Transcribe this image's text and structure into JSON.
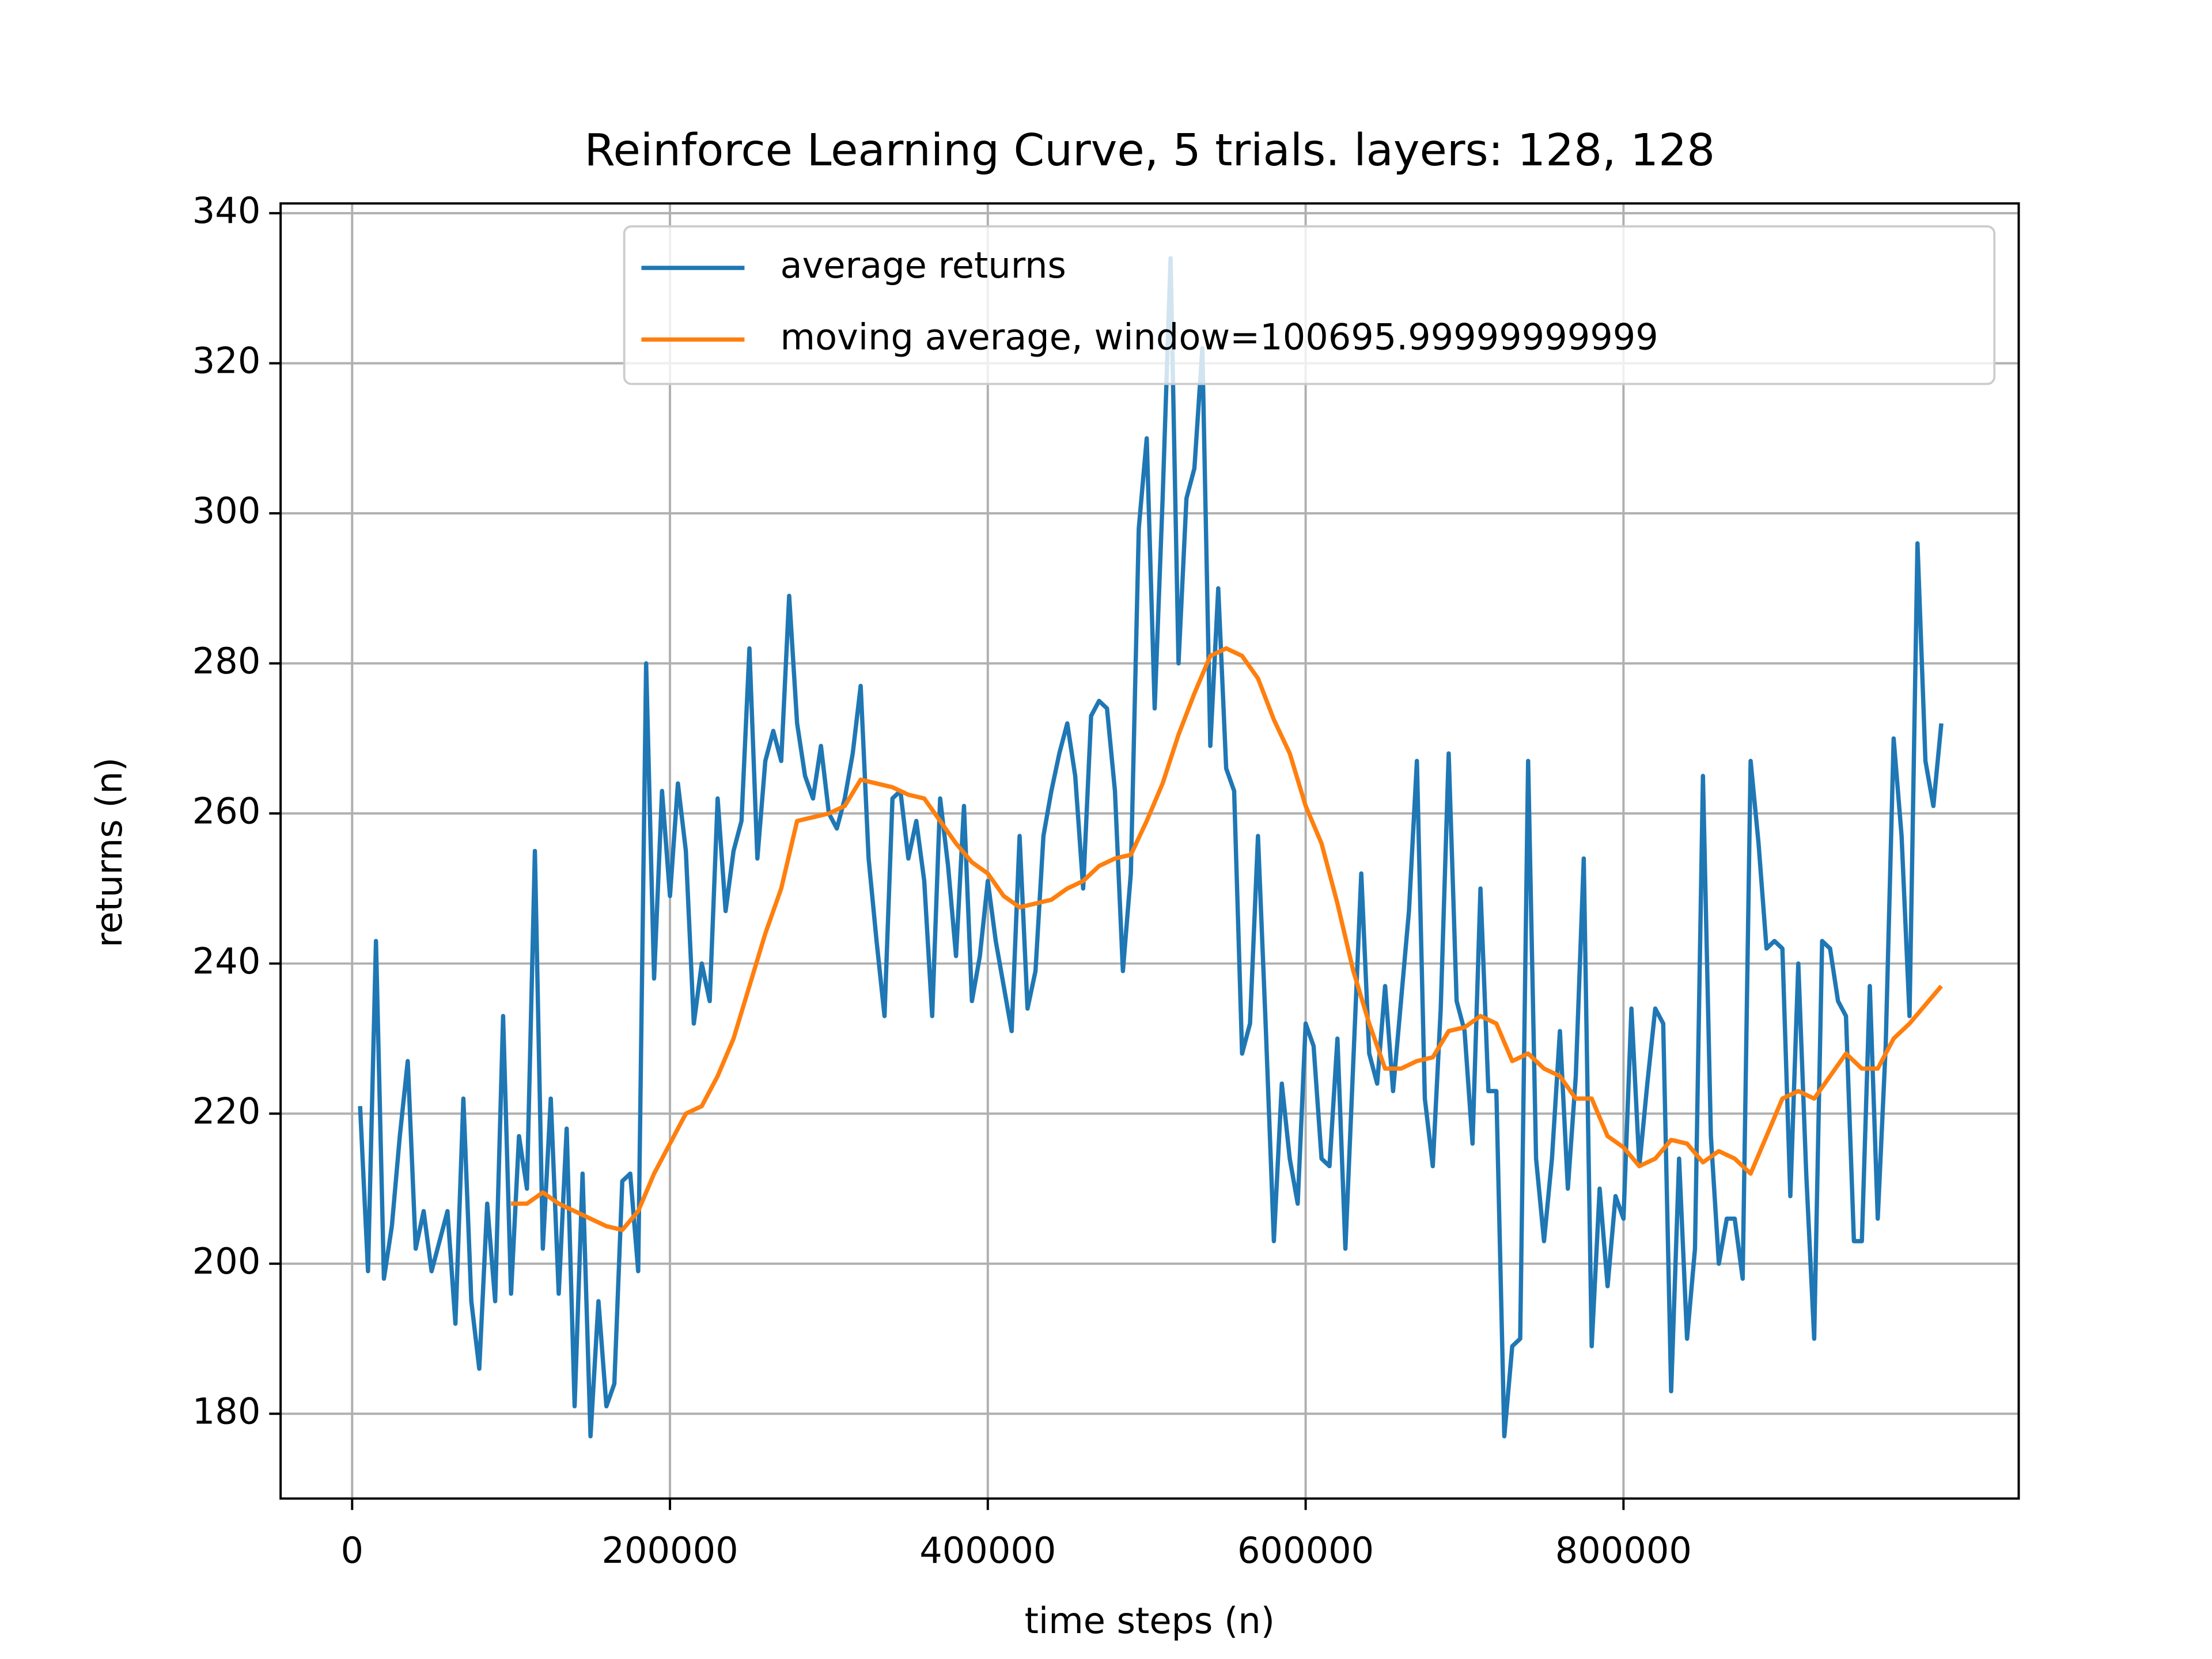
{
  "chart_data": {
    "type": "line",
    "title": "Reinforce Learning Curve, 5 trials. layers: 128, 128",
    "xlabel": "time steps (n)",
    "ylabel": "returns (n)",
    "xlim": [
      -45000,
      1048700
    ],
    "ylim": [
      168.7,
      341.3
    ],
    "xticks": [
      0,
      200000,
      400000,
      600000,
      800000
    ],
    "yticks": [
      180,
      200,
      220,
      240,
      260,
      280,
      300,
      320,
      340
    ],
    "grid": true,
    "series": [
      {
        "name": "average returns",
        "color": "#1f77b4",
        "x": [
          5000,
          10000,
          15000,
          20000,
          25000,
          30000,
          35000,
          40000,
          45000,
          50000,
          55000,
          60000,
          65000,
          70000,
          75000,
          80000,
          85000,
          90000,
          95000,
          100000,
          105000,
          110000,
          115000,
          120000,
          125000,
          130000,
          135000,
          140000,
          145000,
          150000,
          155000,
          160000,
          165000,
          170000,
          175000,
          180000,
          185000,
          190000,
          195000,
          200000,
          205000,
          210000,
          215000,
          220000,
          225000,
          230000,
          235000,
          240000,
          245000,
          250000,
          255000,
          260000,
          265000,
          270000,
          275000,
          280000,
          285000,
          290000,
          295000,
          300000,
          305000,
          310000,
          315000,
          320000,
          325000,
          330000,
          335000,
          340000,
          345000,
          350000,
          355000,
          360000,
          365000,
          370000,
          375000,
          380000,
          385000,
          390000,
          395000,
          400000,
          405000,
          410000,
          415000,
          420000,
          425000,
          430000,
          435000,
          440000,
          445000,
          450000,
          455000,
          460000,
          465000,
          470000,
          475000,
          480000,
          485000,
          490000,
          495000,
          500000,
          505000,
          510000,
          515000,
          520000,
          525000,
          530000,
          535000,
          540000,
          545000,
          550000,
          555000,
          560000,
          565000,
          570000,
          575000,
          580000,
          585000,
          590000,
          595000,
          600000,
          605000,
          610000,
          615000,
          620000,
          625000,
          630000,
          635000,
          640000,
          645000,
          650000,
          655000,
          660000,
          665000,
          670000,
          675000,
          680000,
          685000,
          690000,
          695000,
          700000,
          705000,
          710000,
          715000,
          720000,
          725000,
          730000,
          735000,
          740000,
          745000,
          750000,
          755000,
          760000,
          765000,
          770000,
          775000,
          780000,
          785000,
          790000,
          795000,
          800000,
          805000,
          810000,
          815000,
          820000,
          825000,
          830000,
          835000,
          840000,
          845000,
          850000,
          855000,
          860000,
          865000,
          870000,
          875000,
          880000,
          885000,
          890000,
          895000,
          900000,
          905000,
          910000,
          915000,
          920000,
          925000,
          930000,
          935000,
          940000,
          945000,
          950000,
          955000,
          960000,
          965000,
          970000,
          975000,
          980000,
          985000,
          990000,
          995000,
          1000000
        ],
        "values": [
          221,
          199,
          243,
          198,
          205,
          217,
          227,
          202,
          207,
          199,
          203,
          207,
          192,
          222,
          195,
          186,
          208,
          195,
          233,
          196,
          217,
          210,
          255,
          202,
          222,
          196,
          218,
          181,
          212,
          177,
          195,
          181,
          184,
          211,
          212,
          199,
          280,
          238,
          263,
          249,
          264,
          255,
          232,
          240,
          235,
          262,
          247,
          255,
          259,
          282,
          254,
          267,
          271,
          267,
          289,
          272,
          265,
          262,
          269,
          260,
          258,
          262,
          268,
          277,
          254,
          243,
          233,
          262,
          263,
          254,
          259,
          251,
          233,
          262,
          253,
          241,
          261,
          235,
          241,
          251,
          243,
          237,
          231,
          257,
          234,
          239,
          257,
          263,
          268,
          272,
          265,
          250,
          273,
          275,
          274,
          263,
          239,
          252,
          298,
          310,
          274,
          302,
          334,
          280,
          302,
          306,
          322,
          269,
          290,
          266,
          263,
          228,
          232,
          257,
          231,
          203,
          224,
          214,
          208,
          232,
          229,
          214,
          213,
          230,
          202,
          227,
          252,
          228,
          224,
          237,
          223,
          235,
          247,
          267,
          222,
          213,
          234,
          268,
          235,
          231,
          216,
          250,
          223,
          223,
          177,
          189,
          190,
          267,
          214,
          203,
          214,
          231,
          210,
          225,
          254,
          189,
          210,
          197,
          209,
          206,
          234,
          213,
          224,
          234,
          232,
          183,
          214,
          190,
          202,
          265,
          217,
          200,
          206,
          206,
          198,
          267,
          256,
          242,
          243,
          242,
          209,
          240,
          212,
          190,
          243,
          242,
          235,
          233,
          203,
          203,
          237,
          206,
          229,
          270,
          257,
          233,
          296,
          267,
          261,
          272
        ]
      },
      {
        "name": "moving average, window=100695.99999999999",
        "color": "#ff7f0e",
        "x": [
          100000,
          110000,
          120000,
          130000,
          140000,
          150000,
          160000,
          170000,
          180000,
          190000,
          200000,
          210000,
          220000,
          230000,
          240000,
          250000,
          260000,
          270000,
          280000,
          290000,
          300000,
          310000,
          320000,
          330000,
          340000,
          350000,
          360000,
          370000,
          380000,
          390000,
          400000,
          410000,
          420000,
          430000,
          440000,
          450000,
          460000,
          470000,
          480000,
          490000,
          500000,
          510000,
          520000,
          530000,
          540000,
          550000,
          560000,
          570000,
          580000,
          590000,
          600000,
          610000,
          620000,
          630000,
          640000,
          650000,
          660000,
          670000,
          680000,
          690000,
          700000,
          710000,
          720000,
          730000,
          740000,
          750000,
          760000,
          770000,
          780000,
          790000,
          800000,
          810000,
          820000,
          830000,
          840000,
          850000,
          860000,
          870000,
          880000,
          890000,
          900000,
          910000,
          920000,
          930000,
          940000,
          950000,
          960000,
          970000,
          980000,
          990000,
          1000000
        ],
        "values": [
          208,
          208,
          209.5,
          208,
          207,
          206,
          205,
          204.5,
          207,
          212,
          216,
          220,
          221,
          225,
          230,
          237,
          244,
          250,
          259,
          259.5,
          260,
          261,
          264.5,
          264,
          263.5,
          262.5,
          262,
          259,
          256,
          253.5,
          252,
          249,
          247.5,
          248,
          248.5,
          250,
          251,
          253,
          254,
          254.5,
          259,
          264,
          270.5,
          276,
          281,
          282,
          281,
          278,
          272.5,
          268,
          261,
          256,
          248,
          239,
          232,
          226,
          226,
          227,
          227.5,
          231,
          231.5,
          233,
          232,
          227,
          228,
          226,
          225,
          222,
          222,
          217,
          215.5,
          213,
          214,
          216.5,
          216,
          213.5,
          215,
          214,
          212,
          217,
          222,
          223,
          222,
          225,
          228,
          226,
          226,
          230,
          232,
          234.5,
          237
        ]
      }
    ]
  }
}
